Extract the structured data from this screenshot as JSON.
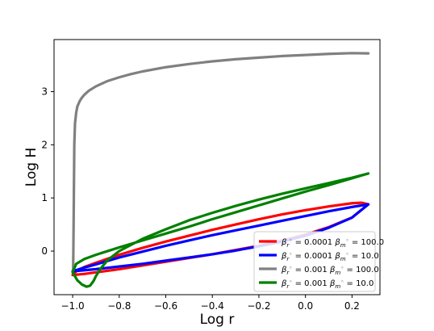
{
  "chart_data": {
    "type": "line",
    "xlabel": "Log r",
    "ylabel": "Log H",
    "xlim": [
      -1.08,
      0.32
    ],
    "ylim": [
      -0.82,
      3.98
    ],
    "xticks": [
      -1.0,
      -0.8,
      -0.6,
      -0.4,
      -0.2,
      0.0,
      0.2
    ],
    "xtick_labels": [
      "−1.0",
      "−0.8",
      "−0.6",
      "−0.4",
      "−0.2",
      "0.0",
      "0.2"
    ],
    "yticks": [
      0,
      1,
      2,
      3
    ],
    "ytick_labels": [
      "0",
      "1",
      "2",
      "3"
    ],
    "legend_position": "lower right",
    "series": [
      {
        "name": "βᵣ⁰ = 0.0001 βₘ⁰ = 100.0",
        "legend_parts": {
          "beta_r": "0.0001",
          "beta_m": "100.0"
        },
        "color": "#ff0000",
        "x": [
          -1.0,
          -0.95,
          -0.9,
          -0.8,
          -0.7,
          -0.6,
          -0.5,
          -0.4,
          -0.3,
          -0.2,
          -0.1,
          0.0,
          0.1,
          0.2,
          0.27,
          0.24,
          0.2,
          0.1,
          0.0,
          -0.1,
          -0.2,
          -0.3,
          -0.4,
          -0.5,
          -0.6,
          -0.7,
          -0.8,
          -0.9,
          -0.95,
          -0.985,
          -1.0
        ],
        "y": [
          -0.45,
          -0.43,
          -0.4,
          -0.34,
          -0.27,
          -0.2,
          -0.13,
          -0.06,
          0.02,
          0.1,
          0.2,
          0.31,
          0.45,
          0.63,
          0.88,
          0.91,
          0.9,
          0.84,
          0.77,
          0.69,
          0.6,
          0.5,
          0.4,
          0.29,
          0.18,
          0.06,
          -0.07,
          -0.22,
          -0.3,
          -0.38,
          -0.45
        ]
      },
      {
        "name": "βᵣ⁰ = 0.0001 βₘ⁰ = 10.0",
        "legend_parts": {
          "beta_r": "0.0001",
          "beta_m": "10.0"
        },
        "color": "#0000ff",
        "x": [
          -1.0,
          -0.95,
          -0.9,
          -0.8,
          -0.7,
          -0.6,
          -0.5,
          -0.4,
          -0.3,
          -0.2,
          -0.1,
          0.0,
          0.1,
          0.2,
          0.27,
          0.2,
          0.1,
          0.0,
          -0.1,
          -0.2,
          -0.3,
          -0.4,
          -0.5,
          -0.6,
          -0.7,
          -0.8,
          -0.9,
          -0.95,
          -1.0
        ],
        "y": [
          -0.38,
          -0.36,
          -0.34,
          -0.29,
          -0.24,
          -0.18,
          -0.12,
          -0.06,
          0.01,
          0.09,
          0.18,
          0.29,
          0.44,
          0.63,
          0.88,
          0.83,
          0.75,
          0.66,
          0.57,
          0.48,
          0.39,
          0.3,
          0.2,
          0.1,
          -0.01,
          -0.12,
          -0.25,
          -0.31,
          -0.38
        ]
      },
      {
        "name": "βᵣ⁰ = 0.001 βₘ⁰ = 100.0",
        "legend_parts": {
          "beta_r": "0.001",
          "beta_m": "100.0"
        },
        "color": "#808080",
        "x": [
          -0.998,
          -0.997,
          -0.995,
          -0.993,
          -0.99,
          -0.985,
          -0.98,
          -0.97,
          -0.96,
          -0.95,
          -0.93,
          -0.9,
          -0.85,
          -0.8,
          -0.75,
          -0.7,
          -0.6,
          -0.5,
          -0.4,
          -0.3,
          -0.2,
          -0.1,
          0.0,
          0.1,
          0.2,
          0.27
        ],
        "y": [
          -0.35,
          0.0,
          1.0,
          2.0,
          2.4,
          2.6,
          2.72,
          2.82,
          2.89,
          2.94,
          3.02,
          3.1,
          3.2,
          3.27,
          3.33,
          3.38,
          3.46,
          3.52,
          3.57,
          3.61,
          3.64,
          3.67,
          3.69,
          3.71,
          3.725,
          3.72
        ]
      },
      {
        "name": "βᵣ⁰ = 0.001 βₘ⁰ = 10.0",
        "legend_parts": {
          "beta_r": "0.001",
          "beta_m": "10.0"
        },
        "color": "#008000",
        "x": [
          -1.0,
          -0.98,
          -0.96,
          -0.94,
          -0.925,
          -0.91,
          -0.9,
          -0.88,
          -0.85,
          -0.8,
          -0.7,
          -0.6,
          -0.5,
          -0.4,
          -0.3,
          -0.2,
          -0.1,
          0.0,
          0.1,
          0.2,
          0.27,
          0.2,
          0.1,
          0.0,
          -0.1,
          -0.2,
          -0.3,
          -0.4,
          -0.5,
          -0.6,
          -0.7,
          -0.8,
          -0.9,
          -0.95,
          -0.985,
          -1.0
        ],
        "y": [
          -0.4,
          -0.55,
          -0.63,
          -0.67,
          -0.65,
          -0.56,
          -0.47,
          -0.33,
          -0.17,
          0.0,
          0.23,
          0.41,
          0.58,
          0.72,
          0.85,
          0.97,
          1.08,
          1.18,
          1.28,
          1.38,
          1.46,
          1.37,
          1.24,
          1.12,
          0.99,
          0.86,
          0.73,
          0.6,
          0.46,
          0.33,
          0.2,
          0.07,
          -0.07,
          -0.15,
          -0.24,
          -0.4
        ]
      }
    ]
  }
}
